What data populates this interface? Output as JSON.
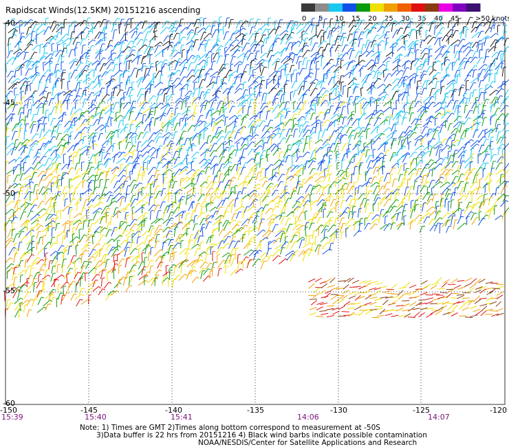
{
  "title": "Rapidscat Winds(12.5KM) 20151216 ascending",
  "legend": {
    "unit_label": ">50 knots",
    "ticks": [
      "0",
      "5",
      "10",
      "15",
      "20",
      "25",
      "30",
      "35",
      "40",
      "45"
    ],
    "colors": [
      "#3a3a3a",
      "#8c8c8c",
      "#18c8f0",
      "#1050e8",
      "#0a9a0a",
      "#f0e000",
      "#f0a000",
      "#f06000",
      "#e01010",
      "#8a3a10",
      "#e800e8",
      "#8000c0",
      "#3a1070"
    ]
  },
  "latitudes": [
    "-40",
    "-45",
    "-50",
    "-55",
    "-60"
  ],
  "longitudes": [
    "-150",
    "-145",
    "-140",
    "-135",
    "-130",
    "-125",
    "-120"
  ],
  "times": [
    "15:39",
    "15:40",
    "15:41",
    "14:06",
    "14:07"
  ],
  "notes": {
    "line1": "Note: 1) Times are GMT 2)Times along bottom correspond to measurement at -50S",
    "line2": "3)Data buffer is 22 hrs from 20151216 4) Black wind barbs indicate possible contamination",
    "line3": "NOAA/NESDIS/Center for Satellite Applications and Research"
  }
}
